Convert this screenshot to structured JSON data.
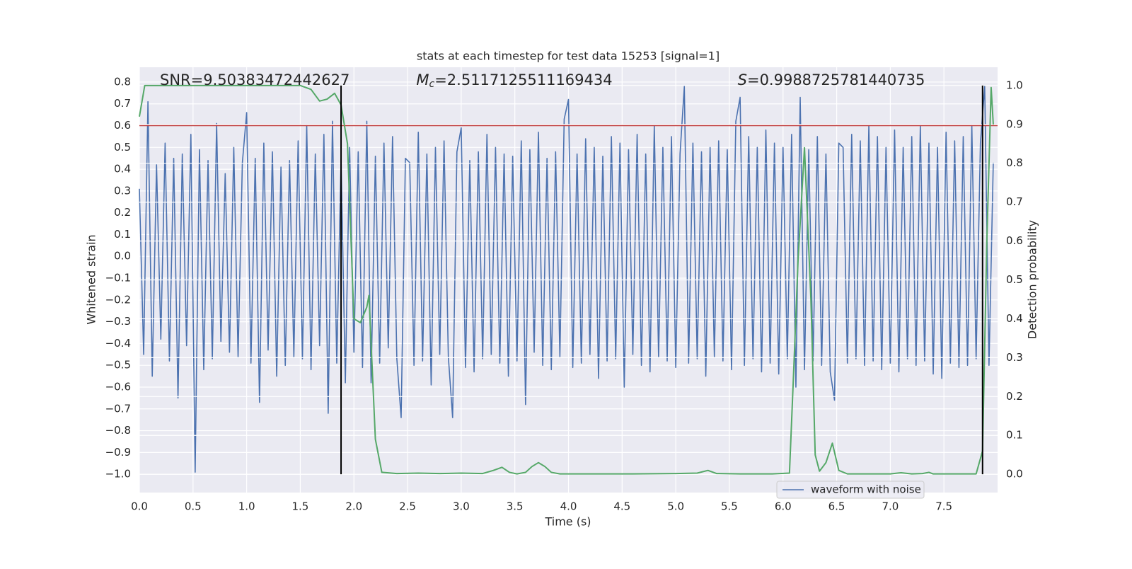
{
  "chart_data": {
    "type": "line",
    "title": "stats at each timestep for test data 15253 [signal=1]",
    "x_label": "Time (s)",
    "y_label": "Whitened strain",
    "y2_label": "Detection probability",
    "annotations": [
      {
        "text": "SNR=9.50383472442627"
      },
      {
        "symbol": "M",
        "subscript": "c",
        "text": "=2.5117125511169434"
      },
      {
        "symbol": "S",
        "text": "=0.9988725781440735"
      }
    ],
    "xlim": [
      0,
      8
    ],
    "ylim": [
      -1.084,
      0.868
    ],
    "y2lim": [
      -0.047,
      1.047
    ],
    "xticks": [
      {
        "value": 0,
        "label": "0.0"
      },
      0.5,
      {
        "value": 1,
        "label": "1.0"
      },
      1.5,
      {
        "value": 2,
        "label": "2.0"
      },
      2.5,
      {
        "value": 3,
        "label": "3.0"
      },
      3.5,
      {
        "value": 4,
        "label": "4.0"
      },
      4.5,
      {
        "value": 5,
        "label": "5.0"
      },
      5.5,
      {
        "value": 6,
        "label": "6.0"
      },
      6.5,
      {
        "value": 7,
        "label": "7.0"
      },
      7.5
    ],
    "yticks": [
      {
        "value": -1.0,
        "label": "−1.0"
      },
      {
        "value": -0.9,
        "label": "−0.9"
      },
      {
        "value": -0.8,
        "label": "−0.8"
      },
      {
        "value": -0.7,
        "label": "−0.7"
      },
      {
        "value": -0.6,
        "label": "−0.6"
      },
      {
        "value": -0.5,
        "label": "−0.5"
      },
      {
        "value": -0.4,
        "label": "−0.4"
      },
      {
        "value": -0.3,
        "label": "−0.3"
      },
      {
        "value": -0.2,
        "label": "−0.2"
      },
      {
        "value": -0.1,
        "label": "−0.1"
      },
      {
        "value": 0,
        "label": "0.0"
      },
      0.1,
      0.2,
      0.3,
      0.4,
      0.5,
      0.6,
      0.7,
      0.8
    ],
    "y2ticks": [
      {
        "value": 0,
        "label": "0.0"
      },
      0.1,
      0.2,
      0.3,
      0.4,
      0.5,
      0.6,
      0.7,
      0.8,
      0.9,
      {
        "value": 1,
        "label": "1.0"
      }
    ],
    "grid": true,
    "legend": "lower right",
    "hline": {
      "value": 0.6,
      "color": "#c03d3e"
    },
    "vlines": {
      "x": [
        1.88,
        7.86
      ],
      "y2": [
        0,
        1
      ],
      "color": "#000000"
    },
    "series": [
      {
        "name": "waveform with noise",
        "color": "#4c72b0",
        "x": [
          0,
          0.04,
          0.08,
          0.12,
          0.16,
          0.2,
          0.24,
          0.28,
          0.32,
          0.36,
          0.4,
          0.44,
          0.48,
          0.52,
          0.56,
          0.6,
          0.64,
          0.68,
          0.72,
          0.76,
          0.8,
          0.84,
          0.88,
          0.92,
          0.96,
          1,
          1.04,
          1.08,
          1.12,
          1.16,
          1.2,
          1.24,
          1.28,
          1.32,
          1.36,
          1.4,
          1.44,
          1.48,
          1.52,
          1.56,
          1.6,
          1.64,
          1.68,
          1.72,
          1.76,
          1.8,
          1.84,
          1.88,
          1.92,
          1.96,
          2,
          2.04,
          2.08,
          2.12,
          2.16,
          2.2,
          2.24,
          2.28,
          2.32,
          2.36,
          2.4,
          2.44,
          2.48,
          2.52,
          2.56,
          2.6,
          2.64,
          2.68,
          2.72,
          2.76,
          2.8,
          2.84,
          2.88,
          2.92,
          2.96,
          3,
          3.04,
          3.08,
          3.12,
          3.16,
          3.2,
          3.24,
          3.28,
          3.32,
          3.36,
          3.4,
          3.44,
          3.48,
          3.52,
          3.56,
          3.6,
          3.64,
          3.68,
          3.72,
          3.76,
          3.8,
          3.84,
          3.88,
          3.92,
          3.96,
          4,
          4.04,
          4.08,
          4.12,
          4.16,
          4.2,
          4.24,
          4.28,
          4.32,
          4.36,
          4.4,
          4.44,
          4.48,
          4.52,
          4.56,
          4.6,
          4.64,
          4.68,
          4.72,
          4.76,
          4.8,
          4.84,
          4.88,
          4.92,
          4.96,
          5,
          5.04,
          5.08,
          5.12,
          5.16,
          5.2,
          5.24,
          5.28,
          5.32,
          5.36,
          5.4,
          5.44,
          5.48,
          5.52,
          5.56,
          5.6,
          5.64,
          5.68,
          5.72,
          5.76,
          5.8,
          5.84,
          5.88,
          5.92,
          5.96,
          6,
          6.04,
          6.08,
          6.12,
          6.16,
          6.2,
          6.24,
          6.28,
          6.32,
          6.36,
          6.4,
          6.44,
          6.48,
          6.52,
          6.56,
          6.6,
          6.64,
          6.68,
          6.72,
          6.76,
          6.8,
          6.84,
          6.88,
          6.92,
          6.96,
          7,
          7.04,
          7.08,
          7.12,
          7.16,
          7.2,
          7.24,
          7.28,
          7.32,
          7.36,
          7.4,
          7.44,
          7.48,
          7.52,
          7.56,
          7.6,
          7.64,
          7.68,
          7.72,
          7.76,
          7.8,
          7.84,
          7.88,
          7.92,
          7.96
        ],
        "values": [
          0.31,
          -0.45,
          0.71,
          -0.55,
          0.42,
          -0.38,
          0.52,
          -0.48,
          0.45,
          -0.65,
          0.47,
          -0.41,
          0.56,
          -0.99,
          0.49,
          -0.52,
          0.44,
          -0.47,
          0.61,
          -0.39,
          0.38,
          -0.44,
          0.5,
          -0.46,
          0.43,
          0.66,
          -0.49,
          0.45,
          -0.67,
          0.52,
          -0.43,
          0.48,
          -0.55,
          0.41,
          -0.5,
          0.44,
          -0.46,
          0.53,
          -0.47,
          0.6,
          -0.52,
          0.47,
          -0.41,
          0.56,
          -0.72,
          0.62,
          -0.49,
          0.45,
          -0.58,
          0.5,
          -0.44,
          0.48,
          -0.51,
          0.62,
          -0.58,
          0.46,
          -0.49,
          0.52,
          -0.42,
          0.55,
          -0.47,
          -0.74,
          0.45,
          0.43,
          -0.5,
          0.57,
          -0.48,
          0.47,
          -0.59,
          0.5,
          -0.45,
          0.53,
          -0.46,
          -0.74,
          0.48,
          0.59,
          -0.51,
          0.44,
          -0.53,
          0.48,
          -0.47,
          0.56,
          -0.45,
          0.5,
          -0.49,
          0.47,
          -0.55,
          0.46,
          -0.48,
          0.53,
          -0.68,
          0.49,
          -0.44,
          0.57,
          -0.5,
          0.45,
          -0.52,
          0.48,
          -0.46,
          0.63,
          0.72,
          -0.51,
          0.47,
          -0.49,
          0.54,
          -0.45,
          0.5,
          -0.56,
          0.46,
          -0.48,
          0.55,
          -0.47,
          0.52,
          -0.6,
          0.49,
          -0.45,
          0.56,
          -0.5,
          0.47,
          -0.53,
          0.6,
          -0.46,
          0.5,
          -0.48,
          0.55,
          -0.51,
          0.47,
          0.78,
          -0.49,
          0.52,
          -0.47,
          0.48,
          -0.55,
          0.5,
          -0.46,
          0.53,
          -0.48,
          0.49,
          -0.52,
          0.62,
          0.73,
          -0.5,
          0.55,
          -0.47,
          0.5,
          -0.53,
          0.58,
          -0.49,
          0.52,
          -0.54,
          0.5,
          -0.47,
          0.56,
          -0.6,
          0.73,
          -0.52,
          0.49,
          -0.48,
          0.55,
          -0.5,
          0.47,
          -0.53,
          -0.66,
          0.52,
          0.5,
          -0.49,
          0.56,
          -0.47,
          0.53,
          -0.5,
          0.6,
          -0.48,
          0.55,
          -0.52,
          0.5,
          -0.49,
          0.58,
          -0.53,
          0.5,
          -0.47,
          0.55,
          -0.5,
          0.6,
          -0.48,
          0.52,
          -0.54,
          0.5,
          -0.56,
          0.57,
          -0.49,
          0.53,
          -0.51,
          0.55,
          -0.5,
          0.6,
          -0.47,
          0.52,
          0.78,
          -0.5,
          0.43
        ]
      },
      {
        "color": "#55a868",
        "axis": "y2",
        "x": [
          0,
          0.05,
          0.2,
          0.5,
          1.0,
          1.5,
          1.6,
          1.68,
          1.75,
          1.82,
          1.88,
          1.94,
          2.0,
          2.06,
          2.12,
          2.14,
          2.2,
          2.26,
          2.4,
          2.6,
          2.8,
          3.0,
          3.2,
          3.3,
          3.38,
          3.45,
          3.52,
          3.6,
          3.66,
          3.72,
          3.78,
          3.84,
          3.92,
          4.2,
          4.6,
          5.0,
          5.2,
          5.3,
          5.38,
          5.6,
          5.9,
          6.06,
          6.1,
          6.14,
          6.2,
          6.26,
          6.3,
          6.34,
          6.4,
          6.46,
          6.52,
          6.6,
          7.0,
          7.1,
          7.2,
          7.3,
          7.36,
          7.4,
          7.6,
          7.8,
          7.86,
          7.9,
          7.94,
          7.96
        ],
        "values": [
          0.92,
          1.0,
          1.0,
          1.0,
          1.0,
          1.0,
          0.99,
          0.96,
          0.965,
          0.98,
          0.95,
          0.85,
          0.4,
          0.39,
          0.43,
          0.46,
          0.09,
          0.005,
          0.002,
          0.003,
          0.002,
          0.003,
          0.002,
          0.01,
          0.018,
          0.005,
          0.001,
          0.005,
          0.02,
          0.03,
          0.02,
          0.005,
          0.001,
          0.001,
          0.001,
          0.002,
          0.003,
          0.01,
          0.002,
          0.001,
          0.001,
          0.003,
          0.27,
          0.55,
          0.84,
          0.45,
          0.05,
          0.008,
          0.03,
          0.08,
          0.01,
          0.001,
          0.001,
          0.004,
          0.001,
          0.002,
          0.005,
          0.001,
          0.001,
          0.001,
          0.06,
          0.6,
          0.995,
          0.9
        ]
      }
    ]
  }
}
